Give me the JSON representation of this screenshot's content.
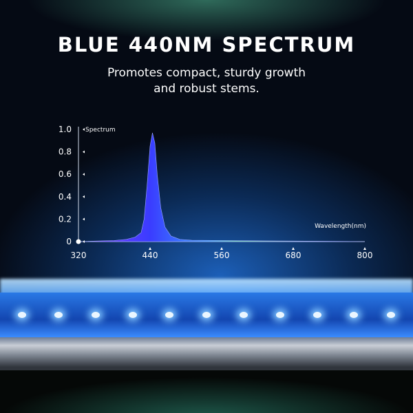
{
  "header": {
    "title": "BLUE 440NM SPECTRUM",
    "subtitle_line1": "Promotes compact, sturdy growth",
    "subtitle_line2": "and robust stems."
  },
  "chart_data": {
    "type": "area",
    "ylabel": "Spectrum",
    "xlabel": "Wavelength(nm)",
    "xlim": [
      320,
      800
    ],
    "ylim": [
      0,
      1.0
    ],
    "xticks": [
      320,
      440,
      560,
      680,
      800
    ],
    "yticks": [
      "0",
      "0.2",
      "0.4",
      "0.6",
      "0.8",
      "1.0"
    ],
    "grid": false,
    "fill_color": "#3a3cff",
    "series": [
      {
        "x": [
          320,
          380,
          400,
          415,
          425,
          430,
          435,
          440,
          444,
          448,
          452,
          458,
          465,
          475,
          490,
          510,
          560,
          620,
          680,
          740,
          800
        ],
        "y": [
          0,
          0.01,
          0.02,
          0.04,
          0.08,
          0.2,
          0.5,
          0.85,
          0.97,
          0.88,
          0.6,
          0.3,
          0.13,
          0.05,
          0.02,
          0.012,
          0.01,
          0.007,
          0.005,
          0.003,
          0
        ]
      }
    ]
  },
  "colors": {
    "led": "#eaf6ff",
    "bar": "#2a79e6"
  }
}
